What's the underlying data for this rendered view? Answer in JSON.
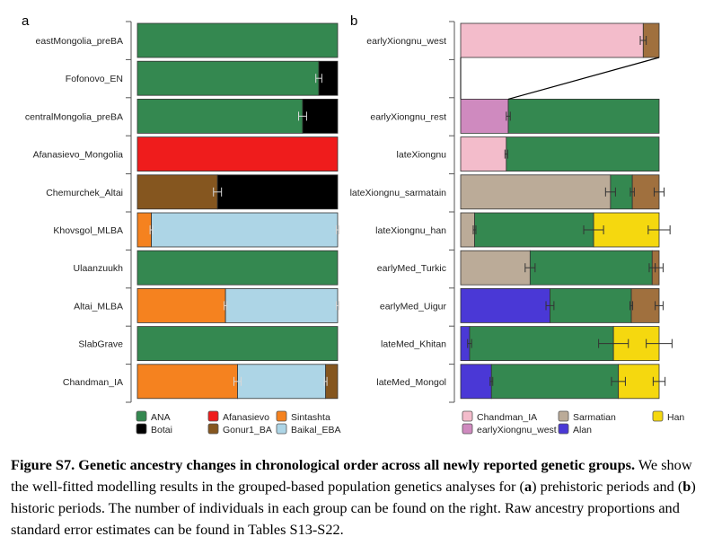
{
  "chart_data": [
    {
      "type": "bar",
      "orientation": "horizontal-stacked",
      "panel_label": "a",
      "xlim": [
        0,
        1
      ],
      "components": [
        {
          "name": "ANA",
          "color": "#348850"
        },
        {
          "name": "Botai",
          "color": "#000000"
        },
        {
          "name": "Afanasievo",
          "color": "#ef1c1c"
        },
        {
          "name": "Gonur1_BA",
          "color": "#85561f"
        },
        {
          "name": "Sintashta",
          "color": "#f5821f"
        },
        {
          "name": "Baikal_EBA",
          "color": "#add5e6"
        }
      ],
      "legend": [
        [
          "ANA",
          "Afanasievo",
          "Sintashta"
        ],
        [
          "Botai",
          "Gonur1_BA",
          "Baikal_EBA"
        ]
      ],
      "error_color": "#d8d8d8",
      "groups": [
        {
          "name": "eastMongolia_preBA",
          "parts": [
            [
              "ANA",
              1.0
            ]
          ],
          "errors": []
        },
        {
          "name": "Fofonovo_EN",
          "parts": [
            [
              "ANA",
              0.906
            ],
            [
              "Botai",
              0.094
            ]
          ],
          "errors": [
            [
              0.906,
              0.015
            ]
          ]
        },
        {
          "name": "centralMongolia_preBA",
          "parts": [
            [
              "ANA",
              0.825
            ],
            [
              "Botai",
              0.175
            ]
          ],
          "errors": [
            [
              0.825,
              0.02
            ]
          ]
        },
        {
          "name": "Afanasievo_Mongolia",
          "parts": [
            [
              "Afanasievo",
              1.0
            ]
          ],
          "errors": []
        },
        {
          "name": "Chemurchek_Altai",
          "parts": [
            [
              "Gonur1_BA",
              0.4
            ],
            [
              "Botai",
              0.6
            ]
          ],
          "errors": [
            [
              0.4,
              0.02
            ]
          ]
        },
        {
          "name": "Khovsgol_MLBA",
          "parts": [
            [
              "Sintashta",
              0.07
            ],
            [
              "Baikal_EBA",
              0.93
            ]
          ],
          "errors": [
            [
              0.07,
              0.006
            ],
            [
              1.0,
              0.006
            ]
          ]
        },
        {
          "name": "Ulaanzuukh",
          "parts": [
            [
              "ANA",
              1.0
            ]
          ],
          "errors": []
        },
        {
          "name": "Altai_MLBA",
          "parts": [
            [
              "Sintashta",
              0.44
            ],
            [
              "Baikal_EBA",
              0.56
            ]
          ],
          "errors": [
            [
              0.44,
              0.006
            ],
            [
              1.0,
              0.006
            ]
          ]
        },
        {
          "name": "SlabGrave",
          "parts": [
            [
              "ANA",
              1.0
            ]
          ],
          "errors": []
        },
        {
          "name": "Chandman_IA",
          "parts": [
            [
              "Sintashta",
              0.5
            ],
            [
              "Baikal_EBA",
              0.44
            ],
            [
              "Gonur1_BA",
              0.06
            ]
          ],
          "errors": [
            [
              0.5,
              0.018
            ],
            [
              0.94,
              0.006
            ]
          ]
        }
      ]
    },
    {
      "type": "bar",
      "orientation": "horizontal-stacked",
      "panel_label": "b",
      "xlim": [
        0,
        1
      ],
      "components": [
        {
          "name": "Chandman_IA",
          "color": "#f3bccb"
        },
        {
          "name": "earlyXiongnu_west",
          "color": "#cf8abf"
        },
        {
          "name": "Sarmatian",
          "color": "#bbab98"
        },
        {
          "name": "Alan",
          "color": "#4a38d6"
        },
        {
          "name": "Han",
          "color": "#f5d80f"
        },
        {
          "name": "ANA",
          "color": "#348850"
        },
        {
          "name": "Gonur1_BA",
          "color": "#a0703e"
        }
      ],
      "legend": [
        [
          "Chandman_IA",
          "Sarmatian",
          "Han"
        ],
        [
          "earlyXiongnu_west",
          "Alan",
          ""
        ]
      ],
      "error_color": "#333333",
      "groups": [
        {
          "name": "earlyXiongnu_west",
          "parts": [
            [
              "Chandman_IA",
              0.92
            ],
            [
              "Gonur1_BA",
              0.08
            ]
          ],
          "errors": [
            [
              0.92,
              0.015
            ]
          ]
        },
        {
          "name": "",
          "parts": [],
          "errors": []
        },
        {
          "name": "earlyXiongnu_rest",
          "parts": [
            [
              "earlyXiongnu_west",
              0.24
            ],
            [
              "ANA",
              0.76
            ]
          ],
          "errors": [
            [
              0.24,
              0.01
            ]
          ]
        },
        {
          "name": "lateXiongnu",
          "parts": [
            [
              "Chandman_IA",
              0.23
            ],
            [
              "ANA",
              0.77
            ]
          ],
          "errors": [
            [
              0.23,
              0.005
            ]
          ]
        },
        {
          "name": "lateXiongnu_sarmatain",
          "parts": [
            [
              "Sarmatian",
              0.755
            ],
            [
              "ANA",
              0.11
            ],
            [
              "Gonur1_BA",
              0.135
            ]
          ],
          "errors": [
            [
              0.755,
              0.025
            ],
            [
              0.865,
              0.01
            ],
            [
              1.0,
              0.025
            ]
          ]
        },
        {
          "name": "lateXiongnu_han",
          "parts": [
            [
              "Sarmatian",
              0.07
            ],
            [
              "ANA",
              0.6
            ],
            [
              "Han",
              0.33
            ]
          ],
          "errors": [
            [
              0.07,
              0.005
            ],
            [
              0.67,
              0.05
            ],
            [
              1.0,
              0.055
            ]
          ]
        },
        {
          "name": "earlyMed_Turkic",
          "parts": [
            [
              "Sarmatian",
              0.35
            ],
            [
              "ANA",
              0.615
            ],
            [
              "Gonur1_BA",
              0.035
            ]
          ],
          "errors": [
            [
              0.35,
              0.025
            ],
            [
              0.965,
              0.015
            ],
            [
              1.0,
              0.02
            ]
          ]
        },
        {
          "name": "earlyMed_Uigur",
          "parts": [
            [
              "Alan",
              0.45
            ],
            [
              "ANA",
              0.41
            ],
            [
              "Gonur1_BA",
              0.14
            ]
          ],
          "errors": [
            [
              0.45,
              0.02
            ],
            [
              0.86,
              0.006
            ],
            [
              1.0,
              0.02
            ]
          ]
        },
        {
          "name": "lateMed_Khitan",
          "parts": [
            [
              "Alan",
              0.045
            ],
            [
              "ANA",
              0.725
            ],
            [
              "Han",
              0.23
            ]
          ],
          "errors": [
            [
              0.045,
              0.01
            ],
            [
              0.77,
              0.075
            ],
            [
              1.0,
              0.065
            ]
          ]
        },
        {
          "name": "lateMed_Mongol",
          "parts": [
            [
              "Alan",
              0.155
            ],
            [
              "ANA",
              0.64
            ],
            [
              "Han",
              0.205
            ]
          ],
          "errors": [
            [
              0.155,
              0.005
            ],
            [
              0.795,
              0.035
            ],
            [
              1.0,
              0.03
            ]
          ]
        }
      ],
      "connector": {
        "from_group": "earlyXiongnu_west",
        "to_group": "earlyXiongnu_rest"
      }
    }
  ],
  "caption": {
    "title": "Figure S7. Genetic ancestry changes in chronological order across all newly reported genetic groups.",
    "body_1": " We show the well-fitted modelling results in the grouped-based population genetics analyses for (",
    "a": "a",
    "body_2": ") prehistoric periods and (",
    "b": "b",
    "body_3": ") historic periods. The number of individuals in each group can be found on the right. Raw ancestry proportions and standard error estimates can be found in Tables S13-S22."
  }
}
